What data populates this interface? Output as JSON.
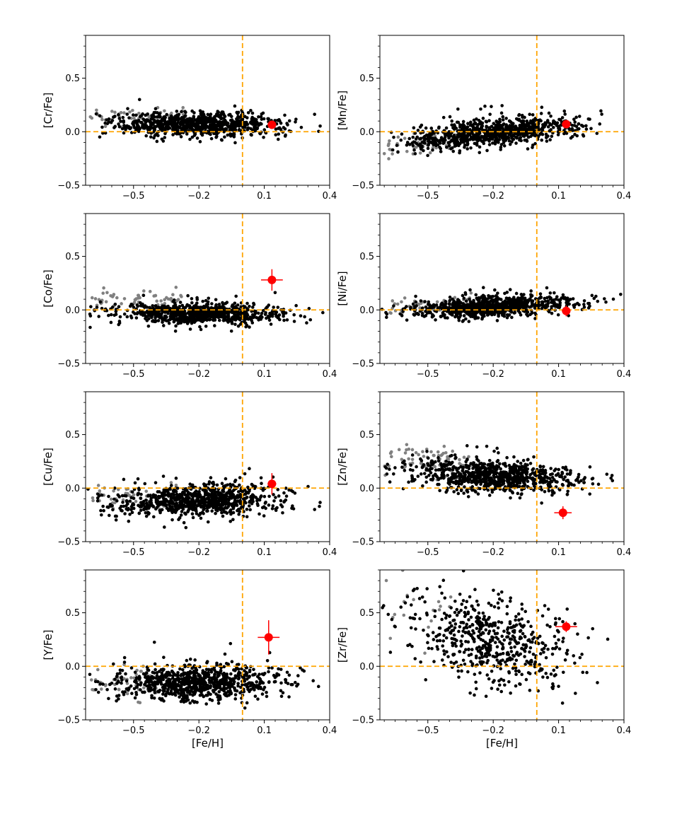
{
  "figure": {
    "marker_colors": {
      "sample": "#000000",
      "sample_gray": "#808080",
      "target": "#ff0000",
      "reference_line": "#ffa500"
    }
  },
  "chart_data": [
    {
      "type": "scatter",
      "ylabel": "[Cr/Fe]",
      "xlabel": "",
      "xlim": [
        -0.72,
        0.4
      ],
      "ylim": [
        -0.5,
        0.9
      ],
      "xticks": [
        -0.5,
        -0.2,
        0.1,
        0.4
      ],
      "xtick_labels": [
        "−0.5",
        "−0.2",
        "0.1",
        "0.4"
      ],
      "yticks": [
        -0.5,
        0.0,
        0.5
      ],
      "ytick_labels": [
        "−0.5",
        "0.0",
        "0.5"
      ],
      "reference_lines": {
        "x": 0.0,
        "y": 0.0
      },
      "cloud": {
        "n_black": 820,
        "n_gray": 55,
        "mean_y": 0.07,
        "slope": -0.01,
        "spread": 0.055,
        "gray_x_max": -0.28,
        "gray_offset": 0.06
      },
      "highlight": {
        "x": 0.135,
        "y": 0.065,
        "xerr": 0.02,
        "yerr": 0.02
      }
    },
    {
      "type": "scatter",
      "ylabel": "[Mn/Fe]",
      "xlabel": "",
      "xlim": [
        -0.72,
        0.4
      ],
      "ylim": [
        -0.5,
        0.9
      ],
      "xticks": [
        -0.5,
        -0.2,
        0.1,
        0.4
      ],
      "xtick_labels": [
        "−0.5",
        "−0.2",
        "0.1",
        "0.4"
      ],
      "yticks": [
        -0.5,
        0.0,
        0.5
      ],
      "ytick_labels": [
        "−0.5",
        "0.0",
        "0.5"
      ],
      "reference_lines": {
        "x": 0.0,
        "y": 0.0
      },
      "cloud": {
        "n_black": 820,
        "n_gray": 55,
        "mean_y": 0.03,
        "slope": 0.2,
        "spread": 0.06,
        "gray_x_max": -0.35,
        "gray_offset": -0.03
      },
      "highlight": {
        "x": 0.135,
        "y": 0.07,
        "xerr": 0.02,
        "yerr": 0.02
      }
    },
    {
      "type": "scatter",
      "ylabel": "[Co/Fe]",
      "xlabel": "",
      "xlim": [
        -0.72,
        0.4
      ],
      "ylim": [
        -0.5,
        0.9
      ],
      "xticks": [
        -0.5,
        -0.2,
        0.1,
        0.4
      ],
      "xtick_labels": [
        "−0.5",
        "−0.2",
        "0.1",
        "0.4"
      ],
      "yticks": [
        -0.5,
        0.0,
        0.5
      ],
      "ytick_labels": [
        "−0.5",
        "0.0",
        "0.5"
      ],
      "reference_lines": {
        "x": 0.0,
        "y": 0.0
      },
      "cloud": {
        "n_black": 820,
        "n_gray": 55,
        "mean_y": -0.04,
        "slope": -0.02,
        "spread": 0.05,
        "gray_x_max": -0.3,
        "gray_offset": 0.14
      },
      "highlight": {
        "x": 0.135,
        "y": 0.28,
        "xerr": 0.05,
        "yerr": 0.1
      }
    },
    {
      "type": "scatter",
      "ylabel": "[Ni/Fe]",
      "xlabel": "",
      "xlim": [
        -0.72,
        0.4
      ],
      "ylim": [
        -0.5,
        0.9
      ],
      "xticks": [
        -0.5,
        -0.2,
        0.1,
        0.4
      ],
      "xtick_labels": [
        "−0.5",
        "−0.2",
        "0.1",
        "0.4"
      ],
      "yticks": [
        -0.5,
        0.0,
        0.5
      ],
      "ytick_labels": [
        "−0.5",
        "0.0",
        "0.5"
      ],
      "reference_lines": {
        "x": 0.0,
        "y": 0.0
      },
      "cloud": {
        "n_black": 820,
        "n_gray": 55,
        "mean_y": 0.05,
        "slope": 0.1,
        "spread": 0.045,
        "gray_x_max": -0.3,
        "gray_offset": 0.04
      },
      "highlight": {
        "x": 0.135,
        "y": -0.01,
        "xerr": 0.02,
        "yerr": 0.05
      }
    },
    {
      "type": "scatter",
      "ylabel": "[Cu/Fe]",
      "xlabel": "",
      "xlim": [
        -0.72,
        0.4
      ],
      "ylim": [
        -0.5,
        0.9
      ],
      "xticks": [
        -0.5,
        -0.2,
        0.1,
        0.4
      ],
      "xtick_labels": [
        "−0.5",
        "−0.2",
        "0.1",
        "0.4"
      ],
      "yticks": [
        -0.5,
        0.0,
        0.5
      ],
      "ytick_labels": [
        "−0.5",
        "0.0",
        "0.5"
      ],
      "reference_lines": {
        "x": 0.0,
        "y": 0.0
      },
      "cloud": {
        "n_black": 820,
        "n_gray": 55,
        "mean_y": -0.11,
        "slope": 0.05,
        "spread": 0.07,
        "gray_x_max": -0.3,
        "gray_offset": 0.05
      },
      "highlight": {
        "x": 0.135,
        "y": 0.04,
        "xerr": 0.02,
        "yerr": 0.1
      }
    },
    {
      "type": "scatter",
      "ylabel": "[Zn/Fe]",
      "xlabel": "",
      "xlim": [
        -0.72,
        0.4
      ],
      "ylim": [
        -0.5,
        0.9
      ],
      "xticks": [
        -0.5,
        -0.2,
        0.1,
        0.4
      ],
      "xtick_labels": [
        "−0.5",
        "−0.2",
        "0.1",
        "0.4"
      ],
      "yticks": [
        -0.5,
        0.0,
        0.5
      ],
      "ytick_labels": [
        "−0.5",
        "0.0",
        "0.5"
      ],
      "reference_lines": {
        "x": 0.0,
        "y": 0.0
      },
      "cloud": {
        "n_black": 820,
        "n_gray": 70,
        "mean_y": 0.09,
        "slope": -0.1,
        "spread": 0.075,
        "gray_x_max": -0.3,
        "gray_offset": 0.12
      },
      "highlight": {
        "x": 0.12,
        "y": -0.23,
        "xerr": 0.04,
        "yerr": 0.06
      }
    },
    {
      "type": "scatter",
      "ylabel": "[Y/Fe]",
      "xlabel": "[Fe/H]",
      "xlim": [
        -0.72,
        0.4
      ],
      "ylim": [
        -0.5,
        0.9
      ],
      "xticks": [
        -0.5,
        -0.2,
        0.1,
        0.4
      ],
      "xtick_labels": [
        "−0.5",
        "−0.2",
        "0.1",
        "0.4"
      ],
      "yticks": [
        -0.5,
        0.0,
        0.5
      ],
      "ytick_labels": [
        "−0.5",
        "0.0",
        "0.5"
      ],
      "reference_lines": {
        "x": 0.0,
        "y": 0.0
      },
      "cloud": {
        "n_black": 820,
        "n_gray": 55,
        "mean_y": -0.14,
        "slope": 0.05,
        "spread": 0.08,
        "gray_x_max": -0.35,
        "gray_offset": 0.02
      },
      "highlight": {
        "x": 0.12,
        "y": 0.27,
        "xerr": 0.05,
        "yerr": 0.16
      }
    },
    {
      "type": "scatter",
      "ylabel": "[Zr/Fe]",
      "xlabel": "[Fe/H]",
      "xlim": [
        -0.72,
        0.4
      ],
      "ylim": [
        -0.5,
        0.9
      ],
      "xticks": [
        -0.5,
        -0.2,
        0.1,
        0.4
      ],
      "xtick_labels": [
        "−0.5",
        "−0.2",
        "0.1",
        "0.4"
      ],
      "yticks": [
        -0.5,
        0.0,
        0.5
      ],
      "ytick_labels": [
        "−0.5",
        "0.0",
        "0.5"
      ],
      "reference_lines": {
        "x": 0.0,
        "y": 0.0
      },
      "cloud": {
        "n_black": 560,
        "n_gray": 20,
        "mean_y": 0.16,
        "slope": -0.4,
        "spread": 0.2,
        "gray_x_max": -0.4,
        "gray_offset": 0.2
      },
      "highlight": {
        "x": 0.135,
        "y": 0.37,
        "xerr": 0.05,
        "yerr": 0.05
      }
    }
  ]
}
